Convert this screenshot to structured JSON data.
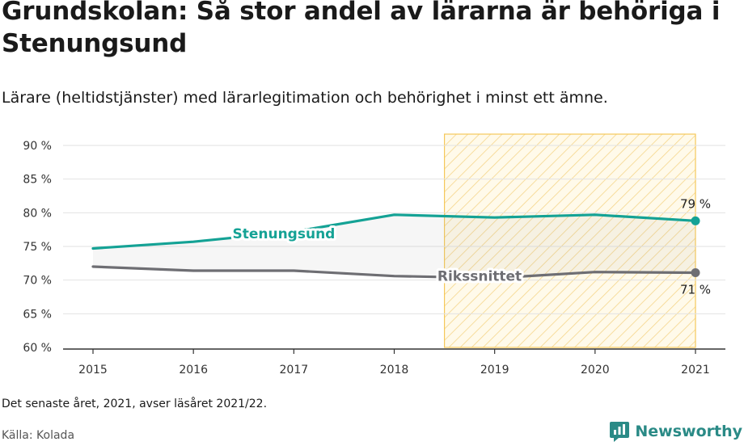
{
  "header": {
    "title": "Grundskolan: Så stor andel av lärarna är behöriga i Stenungsund",
    "subtitle": "Lärare (heltidstjänster) med lärarlegitimation och behörighet i minst ett ämne."
  },
  "footer": {
    "note": "Det senaste året, 2021, avser läsåret 2021/22.",
    "source": "Källa: Kolada",
    "brand": "Newsworthy"
  },
  "chart_data": {
    "type": "line",
    "x": [
      2015,
      2016,
      2017,
      2018,
      2019,
      2020,
      2021
    ],
    "xlim": [
      2015,
      2021
    ],
    "ylim": [
      60,
      90
    ],
    "yticks": [
      60,
      65,
      70,
      75,
      80,
      85,
      90
    ],
    "ytick_labels": [
      "60 %",
      "65 %",
      "70 %",
      "75 %",
      "80 %",
      "85 %",
      "90 %"
    ],
    "grid": true,
    "highlight_range": [
      2018.5,
      2021
    ],
    "series": [
      {
        "name": "Stenungsund",
        "values": [
          74.7,
          75.7,
          77.2,
          79.7,
          79.3,
          79.7,
          78.8
        ],
        "color": "#14a295",
        "end_label": "79 %"
      },
      {
        "name": "Rikssnittet",
        "values": [
          72.0,
          71.4,
          71.4,
          70.6,
          70.3,
          71.2,
          71.1
        ],
        "color": "#6e6e73",
        "end_label": "71 %"
      }
    ]
  }
}
